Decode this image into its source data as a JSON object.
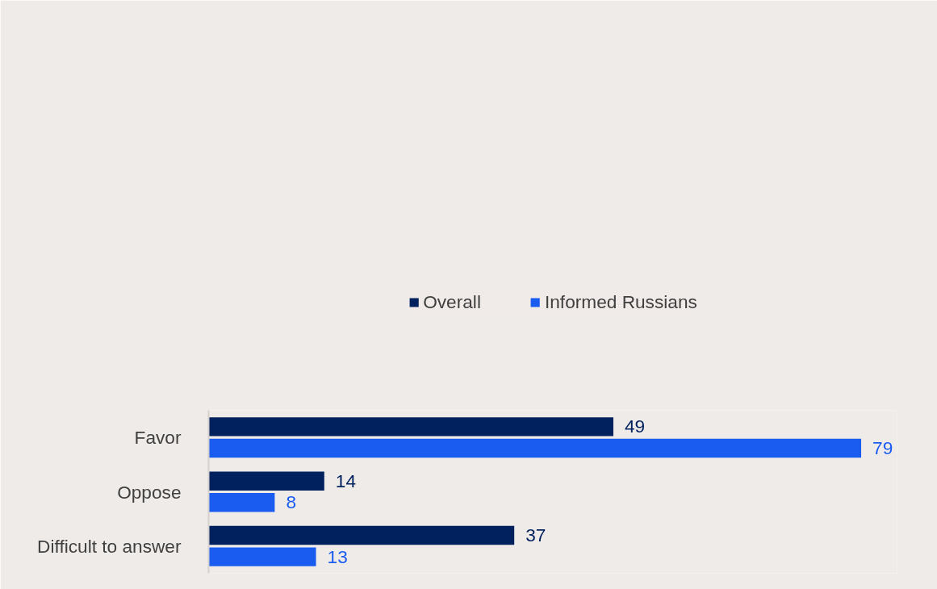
{
  "chart_data": {
    "type": "bar",
    "orientation": "horizontal",
    "categories": [
      "Favor",
      "Oppose",
      "Difficult to answer"
    ],
    "series": [
      {
        "name": "Overall",
        "color": "#00215e",
        "values": [
          49,
          14,
          37
        ]
      },
      {
        "name": "Informed Russians",
        "color": "#1a5cf0",
        "values": [
          79,
          8,
          13
        ]
      }
    ],
    "data_labels": true,
    "legend": "top",
    "grid": false
  }
}
